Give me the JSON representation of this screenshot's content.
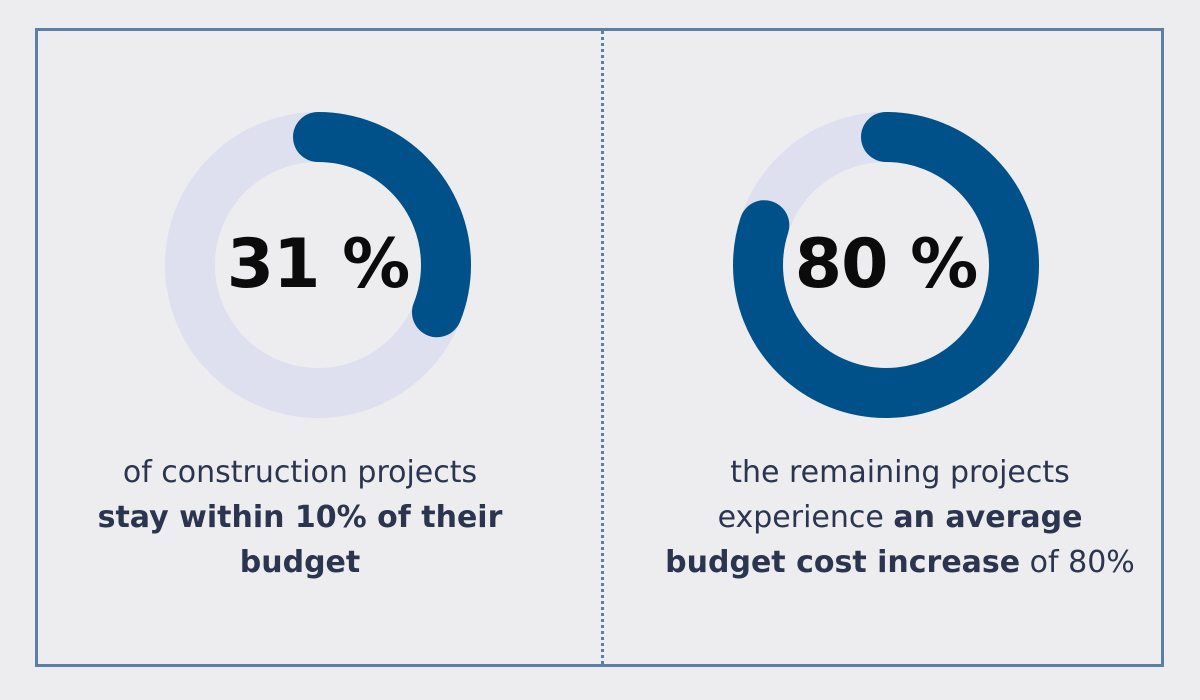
{
  "chart_data": [
    {
      "type": "pie",
      "variant": "donut",
      "value": 31,
      "max": 100,
      "label": "31 %",
      "colors": {
        "filled": "#00508a",
        "track": "#dee0ef"
      },
      "caption": {
        "line1": "of construction projects",
        "line2": "stay within 10% of their",
        "line3": "budget"
      }
    },
    {
      "type": "pie",
      "variant": "donut",
      "value": 80,
      "max": 100,
      "label": "80 %",
      "colors": {
        "filled": "#00508a",
        "track": "#dee0ef"
      },
      "caption": {
        "line1": "the remaining projects",
        "line2_regular": "experience ",
        "line2_bold": "an average",
        "line3_bold": "budget cost increase",
        "line3_regular": " of 80%"
      }
    }
  ],
  "colors": {
    "background": "#ededf0",
    "frame": "#5c7fa8",
    "text": "#2c3550",
    "number": "#0b0b0b"
  }
}
